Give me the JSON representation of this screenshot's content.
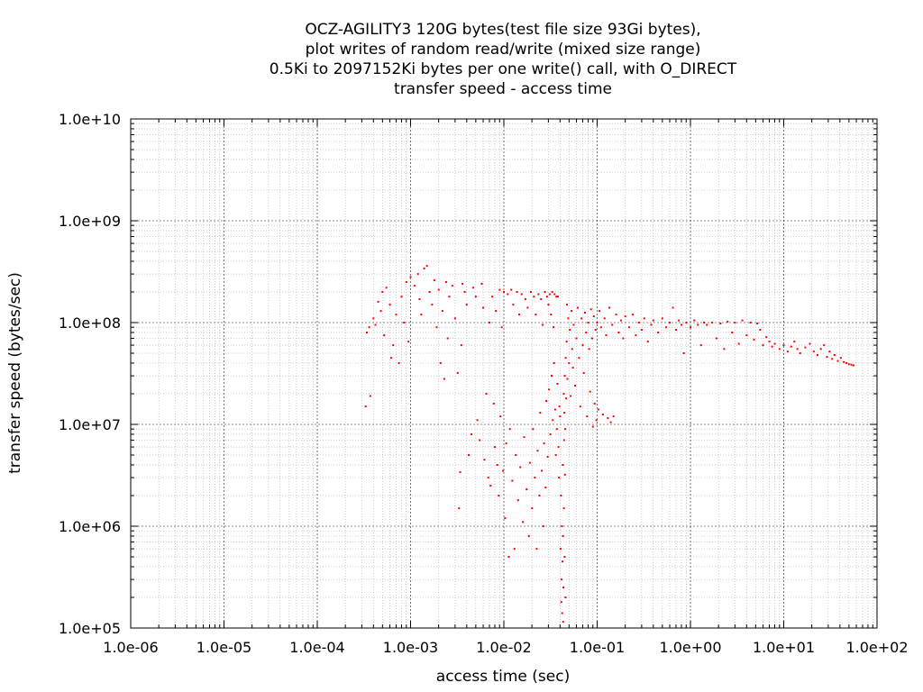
{
  "chart_data": {
    "type": "scatter",
    "title_lines": [
      "OCZ-AGILITY3 120G bytes(test file size 93Gi bytes),",
      "plot writes of random read/write (mixed size range)",
      "0.5Ki to 2097152Ki bytes per one write() call, with O_DIRECT",
      "transfer speed - access time"
    ],
    "xlabel": "access time (sec)",
    "ylabel": "transfer speed (bytes/sec)",
    "x_scale": "log",
    "y_scale": "log",
    "xlim": [
      1e-06,
      100
    ],
    "ylim": [
      100000,
      10000000000
    ],
    "x_ticks": [
      1e-06,
      1e-05,
      0.0001,
      0.001,
      0.01,
      0.1,
      1,
      10,
      100
    ],
    "x_tick_labels": [
      "1.0e-06",
      "1.0e-05",
      "1.0e-04",
      "1.0e-03",
      "1.0e-02",
      "1.0e-01",
      "1.0e+00",
      "1.0e+01",
      "1.0e+02"
    ],
    "y_ticks": [
      100000,
      1000000,
      10000000,
      100000000,
      1000000000,
      10000000000
    ],
    "y_tick_labels": [
      "1.0e+05",
      "1.0e+06",
      "1.0e+07",
      "1.0e+08",
      "1.0e+09",
      "1.0e+10"
    ],
    "grid": true,
    "marker_color": "#ff0000",
    "series": [
      {
        "points": [
          [
            0.00033,
            15000000
          ],
          [
            0.00037,
            19000000
          ],
          [
            0.00034,
            80000000
          ],
          [
            0.00036,
            90000000
          ],
          [
            0.0004,
            110000000
          ],
          [
            0.00042,
            95000000
          ],
          [
            0.00045,
            160000000
          ],
          [
            0.00048,
            130000000
          ],
          [
            0.0005,
            200000000
          ],
          [
            0.00052,
            75000000
          ],
          [
            0.00055,
            220000000
          ],
          [
            0.0006,
            150000000
          ],
          [
            0.00062,
            45000000
          ],
          [
            0.00065,
            60000000
          ],
          [
            0.0007,
            120000000
          ],
          [
            0.00075,
            40000000
          ],
          [
            0.0008,
            180000000
          ],
          [
            0.00085,
            100000000
          ],
          [
            0.0009,
            250000000
          ],
          [
            0.00095,
            65000000
          ],
          [
            0.001,
            280000000
          ],
          [
            0.0011,
            230000000
          ],
          [
            0.0012,
            300000000
          ],
          [
            0.00125,
            170000000
          ],
          [
            0.0013,
            120000000
          ],
          [
            0.0014,
            340000000
          ],
          [
            0.0015,
            360000000
          ],
          [
            0.0016,
            200000000
          ],
          [
            0.0017,
            150000000
          ],
          [
            0.0018,
            260000000
          ],
          [
            0.0019,
            90000000
          ],
          [
            0.002,
            210000000
          ],
          [
            0.0021,
            40000000
          ],
          [
            0.0022,
            130000000
          ],
          [
            0.0023,
            28000000
          ],
          [
            0.0024,
            250000000
          ],
          [
            0.0025,
            70000000
          ],
          [
            0.0026,
            180000000
          ],
          [
            0.0028,
            230000000
          ],
          [
            0.003,
            110000000
          ],
          [
            0.0032,
            32000000
          ],
          [
            0.0033,
            1500000
          ],
          [
            0.0034,
            3400000
          ],
          [
            0.0035,
            60000000
          ],
          [
            0.0036,
            240000000
          ],
          [
            0.0038,
            200000000
          ],
          [
            0.004,
            150000000
          ],
          [
            0.0042,
            5000000
          ],
          [
            0.0045,
            8000000
          ],
          [
            0.0047,
            220000000
          ],
          [
            0.005,
            180000000
          ],
          [
            0.0052,
            11000000
          ],
          [
            0.0055,
            7000000
          ],
          [
            0.0058,
            240000000
          ],
          [
            0.006,
            140000000
          ],
          [
            0.0062,
            4500000
          ],
          [
            0.0065,
            20000000
          ],
          [
            0.0068,
            3000000
          ],
          [
            0.007,
            100000000
          ],
          [
            0.0072,
            2500000
          ],
          [
            0.0075,
            180000000
          ],
          [
            0.0078,
            16000000
          ],
          [
            0.008,
            6000000
          ],
          [
            0.0082,
            130000000
          ],
          [
            0.0085,
            4000000
          ],
          [
            0.0088,
            2000000
          ],
          [
            0.009,
            210000000
          ],
          [
            0.0092,
            12000000
          ],
          [
            0.0095,
            90000000
          ],
          [
            0.0098,
            3500000
          ],
          [
            0.01,
            200000000
          ],
          [
            0.0103,
            1200000
          ],
          [
            0.0106,
            6500000
          ],
          [
            0.011,
            190000000
          ],
          [
            0.0113,
            500000
          ],
          [
            0.0116,
            9000000
          ],
          [
            0.012,
            210000000
          ],
          [
            0.0123,
            2800000
          ],
          [
            0.0126,
            150000000
          ],
          [
            0.013,
            600000
          ],
          [
            0.0134,
            5000000
          ],
          [
            0.0138,
            200000000
          ],
          [
            0.0142,
            1800000
          ],
          [
            0.0146,
            120000000
          ],
          [
            0.015,
            3800000
          ],
          [
            0.0155,
            190000000
          ],
          [
            0.016,
            1100000
          ],
          [
            0.0165,
            7500000
          ],
          [
            0.017,
            170000000
          ],
          [
            0.0175,
            2300000
          ],
          [
            0.018,
            140000000
          ],
          [
            0.0185,
            800000
          ],
          [
            0.019,
            4200000
          ],
          [
            0.0195,
            200000000
          ],
          [
            0.02,
            1500000
          ],
          [
            0.0205,
            9000000
          ],
          [
            0.021,
            180000000
          ],
          [
            0.0215,
            3000000
          ],
          [
            0.022,
            120000000
          ],
          [
            0.0225,
            600000
          ],
          [
            0.023,
            5500000
          ],
          [
            0.0235,
            190000000
          ],
          [
            0.024,
            2000000
          ],
          [
            0.0245,
            13000000
          ],
          [
            0.025,
            170000000
          ],
          [
            0.0255,
            3500000
          ],
          [
            0.026,
            95000000
          ],
          [
            0.0265,
            1000000
          ],
          [
            0.027,
            6500000
          ],
          [
            0.0275,
            200000000
          ],
          [
            0.028,
            2400000
          ],
          [
            0.0285,
            17000000
          ],
          [
            0.029,
            180000000
          ],
          [
            0.0295,
            4800000
          ],
          [
            0.03,
            150000000
          ],
          [
            0.0305,
            22000000
          ],
          [
            0.031,
            190000000
          ],
          [
            0.0315,
            8000000
          ],
          [
            0.032,
            120000000
          ],
          [
            0.0325,
            30000000
          ],
          [
            0.033,
            200000000
          ],
          [
            0.0335,
            11000000
          ],
          [
            0.034,
            90000000
          ],
          [
            0.0345,
            40000000
          ],
          [
            0.035,
            190000000
          ],
          [
            0.0355,
            14000000
          ],
          [
            0.036,
            5000000
          ],
          [
            0.0365,
            180000000
          ],
          [
            0.037,
            9000000
          ],
          [
            0.0375,
            25000000
          ],
          [
            0.038,
            180000000
          ],
          [
            0.0385,
            6000000
          ],
          [
            0.039,
            3000000
          ],
          [
            0.0395,
            15000000
          ],
          [
            0.04,
            12000000
          ],
          [
            0.0405,
            600000
          ],
          [
            0.041,
            2000000
          ],
          [
            0.0413,
            180000
          ],
          [
            0.0416,
            300000
          ],
          [
            0.042,
            1000000
          ],
          [
            0.0422,
            140000
          ],
          [
            0.0425,
            450000
          ],
          [
            0.0428,
            4000000
          ],
          [
            0.043,
            800000
          ],
          [
            0.0432,
            115000
          ],
          [
            0.0435,
            250000
          ],
          [
            0.0438,
            20000000
          ],
          [
            0.044,
            1500000
          ],
          [
            0.0442,
            7000000
          ],
          [
            0.0445,
            13000000
          ],
          [
            0.0448,
            500000
          ],
          [
            0.045,
            30000000
          ],
          [
            0.0452,
            3200000
          ],
          [
            0.0455,
            9000000
          ],
          [
            0.0458,
            200000
          ],
          [
            0.046,
            45000000
          ],
          [
            0.0465,
            18000000
          ],
          [
            0.047,
            65000000
          ],
          [
            0.0475,
            150000000
          ],
          [
            0.048,
            28000000
          ],
          [
            0.049,
            110000000
          ],
          [
            0.05,
            40000000
          ],
          [
            0.051,
            85000000
          ],
          [
            0.052,
            19000000
          ],
          [
            0.053,
            130000000
          ],
          [
            0.054,
            55000000
          ],
          [
            0.055,
            36000000
          ],
          [
            0.056,
            95000000
          ],
          [
            0.058,
            24000000
          ],
          [
            0.06,
            70000000
          ],
          [
            0.062,
            140000000
          ],
          [
            0.064,
            45000000
          ],
          [
            0.066,
            15000000
          ],
          [
            0.068,
            110000000
          ],
          [
            0.07,
            60000000
          ],
          [
            0.072,
            32000000
          ],
          [
            0.074,
            125000000
          ],
          [
            0.076,
            80000000
          ],
          [
            0.078,
            12000000
          ],
          [
            0.08,
            100000000
          ],
          [
            0.082,
            55000000
          ],
          [
            0.084,
            21000000
          ],
          [
            0.086,
            135000000
          ],
          [
            0.088,
            70000000
          ],
          [
            0.09,
            9500000
          ],
          [
            0.092,
            115000000
          ],
          [
            0.094,
            16000000
          ],
          [
            0.096,
            85000000
          ],
          [
            0.098,
            11000000
          ],
          [
            0.1,
            100000000
          ],
          [
            0.103,
            14000000
          ],
          [
            0.106,
            130000000
          ],
          [
            0.11,
            90000000
          ],
          [
            0.115,
            12500000
          ],
          [
            0.12,
            110000000
          ],
          [
            0.125,
            75000000
          ],
          [
            0.13,
            11500000
          ],
          [
            0.135,
            140000000
          ],
          [
            0.14,
            10500000
          ],
          [
            0.145,
            95000000
          ],
          [
            0.15,
            12000000
          ],
          [
            0.16,
            120000000
          ],
          [
            0.17,
            80000000
          ],
          [
            0.18,
            105000000
          ],
          [
            0.19,
            70000000
          ],
          [
            0.2,
            115000000
          ],
          [
            0.22,
            90000000
          ],
          [
            0.24,
            120000000
          ],
          [
            0.26,
            75000000
          ],
          [
            0.28,
            100000000
          ],
          [
            0.3,
            85000000
          ],
          [
            0.32,
            110000000
          ],
          [
            0.35,
            65000000
          ],
          [
            0.38,
            95000000
          ],
          [
            0.4,
            105000000
          ],
          [
            0.45,
            80000000
          ],
          [
            0.5,
            110000000
          ],
          [
            0.55,
            90000000
          ],
          [
            0.6,
            100000000
          ],
          [
            0.65,
            140000000
          ],
          [
            0.7,
            85000000
          ],
          [
            0.75,
            105000000
          ],
          [
            0.8,
            95000000
          ],
          [
            0.85,
            50000000
          ],
          [
            0.9,
            100000000
          ],
          [
            1,
            90000000
          ],
          [
            1.1,
            105000000
          ],
          [
            1.2,
            95000000
          ],
          [
            1.3,
            60000000
          ],
          [
            1.4,
            100000000
          ],
          [
            1.5,
            95000000
          ],
          [
            1.7,
            100000000
          ],
          [
            1.9,
            70000000
          ],
          [
            2.1,
            98000000
          ],
          [
            2.3,
            55000000
          ],
          [
            2.5,
            102000000
          ],
          [
            2.8,
            80000000
          ],
          [
            3,
            100000000
          ],
          [
            3.3,
            62000000
          ],
          [
            3.6,
            105000000
          ],
          [
            4,
            75000000
          ],
          [
            4.4,
            100000000
          ],
          [
            4.8,
            68000000
          ],
          [
            5.2,
            98000000
          ],
          [
            5.6,
            85000000
          ],
          [
            6,
            60000000
          ],
          [
            6.5,
            72000000
          ],
          [
            7,
            65000000
          ],
          [
            7.5,
            58000000
          ],
          [
            8,
            62000000
          ],
          [
            9,
            55000000
          ],
          [
            10,
            60000000
          ],
          [
            11,
            52000000
          ],
          [
            12,
            58000000
          ],
          [
            13,
            65000000
          ],
          [
            14,
            55000000
          ],
          [
            15,
            50000000
          ],
          [
            17,
            57000000
          ],
          [
            19,
            62000000
          ],
          [
            21,
            52000000
          ],
          [
            23,
            48000000
          ],
          [
            25,
            55000000
          ],
          [
            27,
            60000000
          ],
          [
            29,
            46000000
          ],
          [
            31,
            52000000
          ],
          [
            33,
            44000000
          ],
          [
            35,
            48000000
          ],
          [
            38,
            42000000
          ],
          [
            41,
            45000000
          ],
          [
            44,
            41000000
          ],
          [
            47,
            40000000
          ],
          [
            50,
            39000000
          ],
          [
            53,
            38500000
          ],
          [
            56,
            38000000
          ]
        ]
      }
    ]
  }
}
